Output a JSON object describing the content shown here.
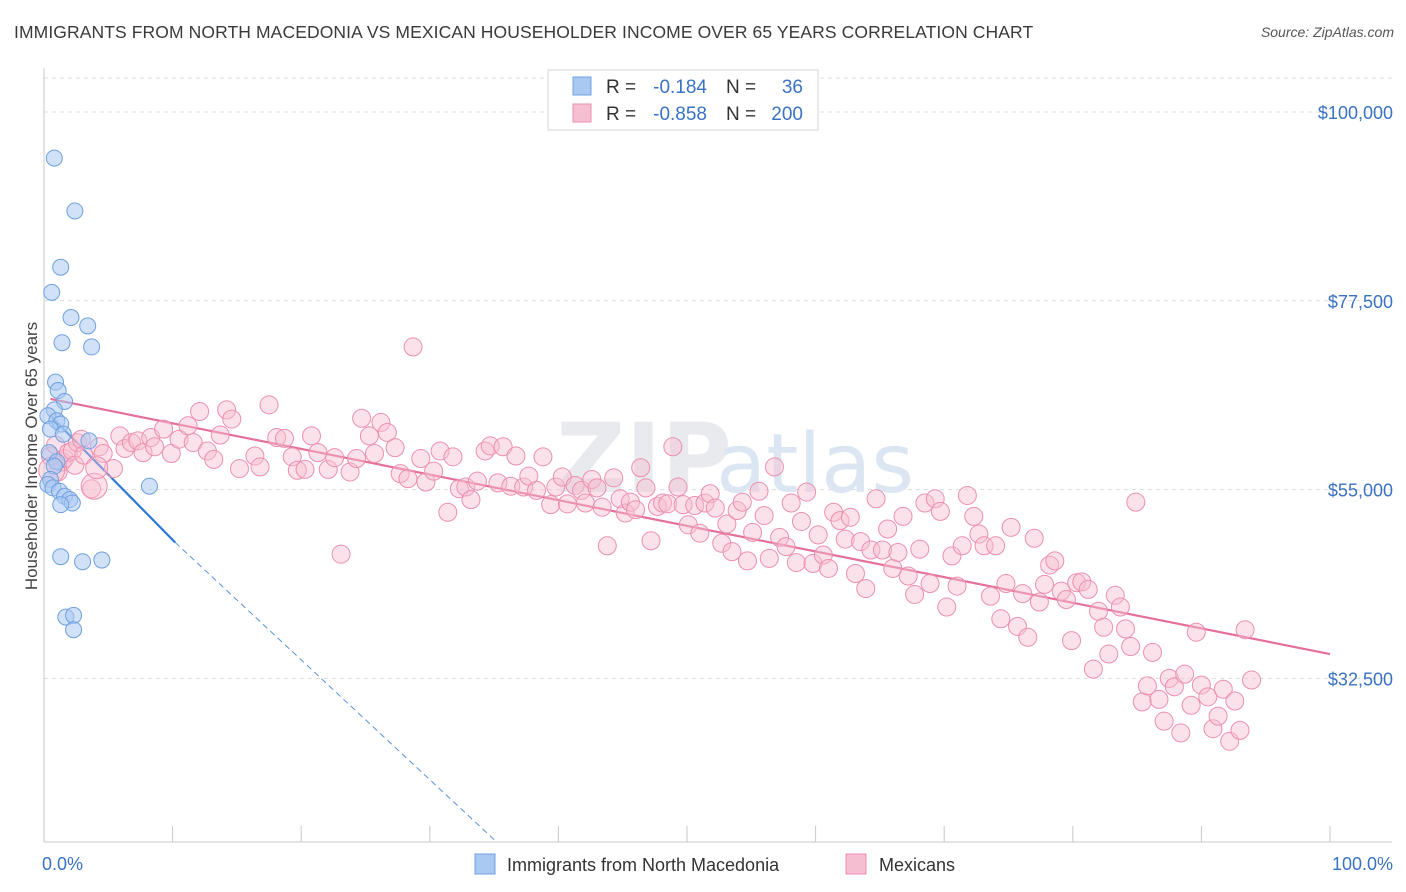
{
  "header": {
    "title": "IMMIGRANTS FROM NORTH MACEDONIA VS MEXICAN HOUSEHOLDER INCOME OVER 65 YEARS CORRELATION CHART",
    "source": "Source: ZipAtlas.com"
  },
  "watermark": "ZIPatlas",
  "colors": {
    "blue_fill": "#a9c9f3",
    "blue_stroke": "#6ea0e0",
    "blue_line": "#2f78d8",
    "pink_fill": "#f6bfd1",
    "pink_stroke": "#ec8fae",
    "pink_line": "#e4709b",
    "axis_label": "#3a72c4",
    "grid": "#dcdcdc"
  },
  "legend": {
    "rows": [
      {
        "r_label": "R =",
        "r_value": "-0.184",
        "n_label": "N =",
        "n_value": "36"
      },
      {
        "r_label": "R =",
        "r_value": "-0.858",
        "n_label": "N =",
        "n_value": "200"
      }
    ]
  },
  "bottom_legend": [
    "Immigrants from North Macedonia",
    "Mexicans"
  ],
  "chart_data": {
    "type": "scatter",
    "xlabel": "",
    "ylabel": "Householder Income Over 65 years",
    "xlim": [
      0,
      100
    ],
    "ylim": [
      13000,
      105000
    ],
    "x_tick_labels": [
      "0.0%",
      "100.0%"
    ],
    "y_ticks": [
      32500,
      55000,
      77500,
      100000
    ],
    "y_tick_labels": [
      "$32,500",
      "$55,000",
      "$77,500",
      "$100,000"
    ],
    "grid": true,
    "series": [
      {
        "name": "Immigrants from North Macedonia",
        "R": -0.184,
        "N": 36,
        "points": [
          [
            0.8,
            94500
          ],
          [
            2.4,
            88200
          ],
          [
            1.3,
            81500
          ],
          [
            0.6,
            78500
          ],
          [
            2.1,
            75500
          ],
          [
            3.4,
            74500
          ],
          [
            1.4,
            72500
          ],
          [
            3.7,
            72000
          ],
          [
            0.9,
            67800
          ],
          [
            1.1,
            66800
          ],
          [
            1.6,
            65500
          ],
          [
            0.8,
            64500
          ],
          [
            0.3,
            63800
          ],
          [
            1.0,
            63200
          ],
          [
            1.3,
            62800
          ],
          [
            0.5,
            62200
          ],
          [
            1.5,
            61600
          ],
          [
            3.5,
            60800
          ],
          [
            0.4,
            59400
          ],
          [
            1.0,
            58300
          ],
          [
            0.8,
            57800
          ],
          [
            0.5,
            56200
          ],
          [
            0.3,
            55600
          ],
          [
            0.7,
            55200
          ],
          [
            1.2,
            54800
          ],
          [
            1.6,
            54200
          ],
          [
            2.0,
            53800
          ],
          [
            2.2,
            53400
          ],
          [
            1.3,
            53200
          ],
          [
            8.2,
            55400
          ],
          [
            1.3,
            47000
          ],
          [
            3.0,
            46400
          ],
          [
            4.5,
            46600
          ],
          [
            1.7,
            39800
          ],
          [
            2.3,
            40000
          ],
          [
            2.3,
            38300
          ]
        ],
        "trend": {
          "x": [
            0.5,
            10.2
          ],
          "y": [
            63800,
            48700
          ],
          "dashed_to": {
            "x": 35.2,
            "y": 13000
          }
        }
      },
      {
        "name": "Mexicans",
        "R": -0.858,
        "N": 200,
        "points": [
          [
            0.5,
            59000
          ],
          [
            0.9,
            60300
          ],
          [
            1.1,
            57100
          ],
          [
            1.4,
            58300
          ],
          [
            1.6,
            58700
          ],
          [
            1.9,
            59400
          ],
          [
            2.2,
            59600
          ],
          [
            2.4,
            57900
          ],
          [
            2.6,
            60600
          ],
          [
            2.9,
            61000
          ],
          [
            3.1,
            59100
          ],
          [
            3.7,
            55100
          ],
          [
            4.3,
            60100
          ],
          [
            4.6,
            59300
          ],
          [
            5.4,
            57500
          ],
          [
            5.9,
            61400
          ],
          [
            6.3,
            59900
          ],
          [
            6.8,
            60600
          ],
          [
            7.3,
            60800
          ],
          [
            7.7,
            59400
          ],
          [
            8.3,
            61200
          ],
          [
            8.6,
            60100
          ],
          [
            9.3,
            62200
          ],
          [
            9.9,
            59300
          ],
          [
            10.5,
            61000
          ],
          [
            11.2,
            62600
          ],
          [
            11.6,
            60600
          ],
          [
            12.1,
            64300
          ],
          [
            12.7,
            59600
          ],
          [
            13.2,
            58600
          ],
          [
            13.7,
            61500
          ],
          [
            14.2,
            64500
          ],
          [
            14.6,
            63400
          ],
          [
            15.2,
            57500
          ],
          [
            16.4,
            59000
          ],
          [
            16.8,
            57700
          ],
          [
            17.5,
            65100
          ],
          [
            18.1,
            61200
          ],
          [
            18.7,
            61100
          ],
          [
            19.3,
            58900
          ],
          [
            19.7,
            57300
          ],
          [
            20.3,
            57400
          ],
          [
            20.8,
            61400
          ],
          [
            21.3,
            59400
          ],
          [
            22.1,
            57400
          ],
          [
            22.6,
            58800
          ],
          [
            23.1,
            47300
          ],
          [
            23.8,
            57100
          ],
          [
            24.3,
            58700
          ],
          [
            24.7,
            63500
          ],
          [
            25.3,
            61400
          ],
          [
            25.7,
            59300
          ],
          [
            26.2,
            63000
          ],
          [
            26.7,
            61800
          ],
          [
            27.3,
            60000
          ],
          [
            27.7,
            56900
          ],
          [
            28.3,
            56300
          ],
          [
            28.7,
            72000
          ],
          [
            29.3,
            58700
          ],
          [
            29.7,
            55900
          ],
          [
            30.3,
            57200
          ],
          [
            30.8,
            59600
          ],
          [
            31.4,
            52300
          ],
          [
            31.8,
            58900
          ],
          [
            32.3,
            55100
          ],
          [
            32.8,
            55300
          ],
          [
            33.2,
            53800
          ],
          [
            33.7,
            56000
          ],
          [
            34.3,
            59600
          ],
          [
            34.7,
            60200
          ],
          [
            35.3,
            55800
          ],
          [
            35.7,
            60100
          ],
          [
            36.3,
            55400
          ],
          [
            36.7,
            59000
          ],
          [
            37.3,
            55300
          ],
          [
            37.7,
            56600
          ],
          [
            38.3,
            54900
          ],
          [
            38.8,
            58900
          ],
          [
            39.4,
            53200
          ],
          [
            39.8,
            55300
          ],
          [
            40.3,
            56500
          ],
          [
            40.7,
            53300
          ],
          [
            41.3,
            55500
          ],
          [
            41.8,
            54900
          ],
          [
            42.1,
            53400
          ],
          [
            42.6,
            56200
          ],
          [
            43.0,
            55200
          ],
          [
            43.4,
            52900
          ],
          [
            43.8,
            48300
          ],
          [
            44.3,
            56400
          ],
          [
            44.8,
            53900
          ],
          [
            45.2,
            52200
          ],
          [
            45.6,
            53500
          ],
          [
            46.0,
            52600
          ],
          [
            46.4,
            57600
          ],
          [
            46.8,
            55200
          ],
          [
            47.2,
            48900
          ],
          [
            47.7,
            53000
          ],
          [
            48.1,
            53400
          ],
          [
            48.5,
            53300
          ],
          [
            48.9,
            60100
          ],
          [
            49.3,
            55300
          ],
          [
            49.7,
            53200
          ],
          [
            50.1,
            50800
          ],
          [
            50.6,
            53100
          ],
          [
            51.0,
            49800
          ],
          [
            51.4,
            53400
          ],
          [
            51.8,
            54500
          ],
          [
            52.2,
            52800
          ],
          [
            52.7,
            48600
          ],
          [
            53.1,
            50900
          ],
          [
            53.5,
            47600
          ],
          [
            53.9,
            52500
          ],
          [
            54.3,
            53500
          ],
          [
            54.7,
            46500
          ],
          [
            55.1,
            49900
          ],
          [
            55.6,
            54800
          ],
          [
            56.0,
            51900
          ],
          [
            56.4,
            46800
          ],
          [
            56.8,
            57700
          ],
          [
            57.2,
            49300
          ],
          [
            57.7,
            48200
          ],
          [
            58.1,
            53400
          ],
          [
            58.5,
            46300
          ],
          [
            58.9,
            51200
          ],
          [
            59.3,
            54700
          ],
          [
            59.8,
            46200
          ],
          [
            60.2,
            49600
          ],
          [
            60.6,
            47200
          ],
          [
            61.0,
            45600
          ],
          [
            61.4,
            52300
          ],
          [
            61.9,
            51300
          ],
          [
            62.3,
            49100
          ],
          [
            62.7,
            51700
          ],
          [
            63.1,
            45000
          ],
          [
            63.5,
            48800
          ],
          [
            63.9,
            43200
          ],
          [
            64.3,
            47800
          ],
          [
            64.7,
            53900
          ],
          [
            65.2,
            47800
          ],
          [
            65.6,
            50300
          ],
          [
            66.0,
            45600
          ],
          [
            66.4,
            47500
          ],
          [
            66.8,
            51800
          ],
          [
            67.2,
            44700
          ],
          [
            67.7,
            42500
          ],
          [
            68.1,
            47900
          ],
          [
            68.5,
            53400
          ],
          [
            68.9,
            43800
          ],
          [
            69.3,
            53900
          ],
          [
            69.7,
            52400
          ],
          [
            70.2,
            41000
          ],
          [
            70.6,
            47100
          ],
          [
            71.0,
            43500
          ],
          [
            71.4,
            48300
          ],
          [
            71.8,
            54300
          ],
          [
            72.3,
            51800
          ],
          [
            72.7,
            49700
          ],
          [
            73.1,
            48300
          ],
          [
            73.6,
            42300
          ],
          [
            74.0,
            48300
          ],
          [
            74.4,
            39600
          ],
          [
            74.8,
            43800
          ],
          [
            75.2,
            50500
          ],
          [
            75.7,
            38700
          ],
          [
            76.1,
            42600
          ],
          [
            76.5,
            37400
          ],
          [
            77.0,
            49200
          ],
          [
            77.4,
            41600
          ],
          [
            77.8,
            43700
          ],
          [
            78.2,
            46000
          ],
          [
            78.6,
            46500
          ],
          [
            79.1,
            42900
          ],
          [
            79.5,
            41900
          ],
          [
            79.9,
            37000
          ],
          [
            80.3,
            43900
          ],
          [
            80.7,
            44000
          ],
          [
            81.2,
            43100
          ],
          [
            81.6,
            33600
          ],
          [
            82.0,
            40500
          ],
          [
            82.4,
            38600
          ],
          [
            82.8,
            35400
          ],
          [
            83.3,
            42400
          ],
          [
            83.7,
            41000
          ],
          [
            84.1,
            38400
          ],
          [
            84.5,
            36300
          ],
          [
            84.9,
            53500
          ],
          [
            85.4,
            29700
          ],
          [
            85.8,
            31600
          ],
          [
            86.2,
            35600
          ],
          [
            86.7,
            30000
          ],
          [
            87.1,
            27400
          ],
          [
            87.5,
            32500
          ],
          [
            87.9,
            31500
          ],
          [
            88.4,
            26000
          ],
          [
            88.7,
            33000
          ],
          [
            89.2,
            29300
          ],
          [
            89.6,
            38000
          ],
          [
            90.0,
            31700
          ],
          [
            90.5,
            30300
          ],
          [
            90.9,
            26500
          ],
          [
            91.3,
            28000
          ],
          [
            91.7,
            31200
          ],
          [
            92.2,
            25000
          ],
          [
            92.6,
            29800
          ],
          [
            93.0,
            26300
          ],
          [
            93.4,
            38300
          ],
          [
            93.9,
            32300
          ]
        ],
        "trend": {
          "x": [
            0.5,
            100.0
          ],
          "y": [
            65800,
            35400
          ]
        }
      }
    ]
  }
}
